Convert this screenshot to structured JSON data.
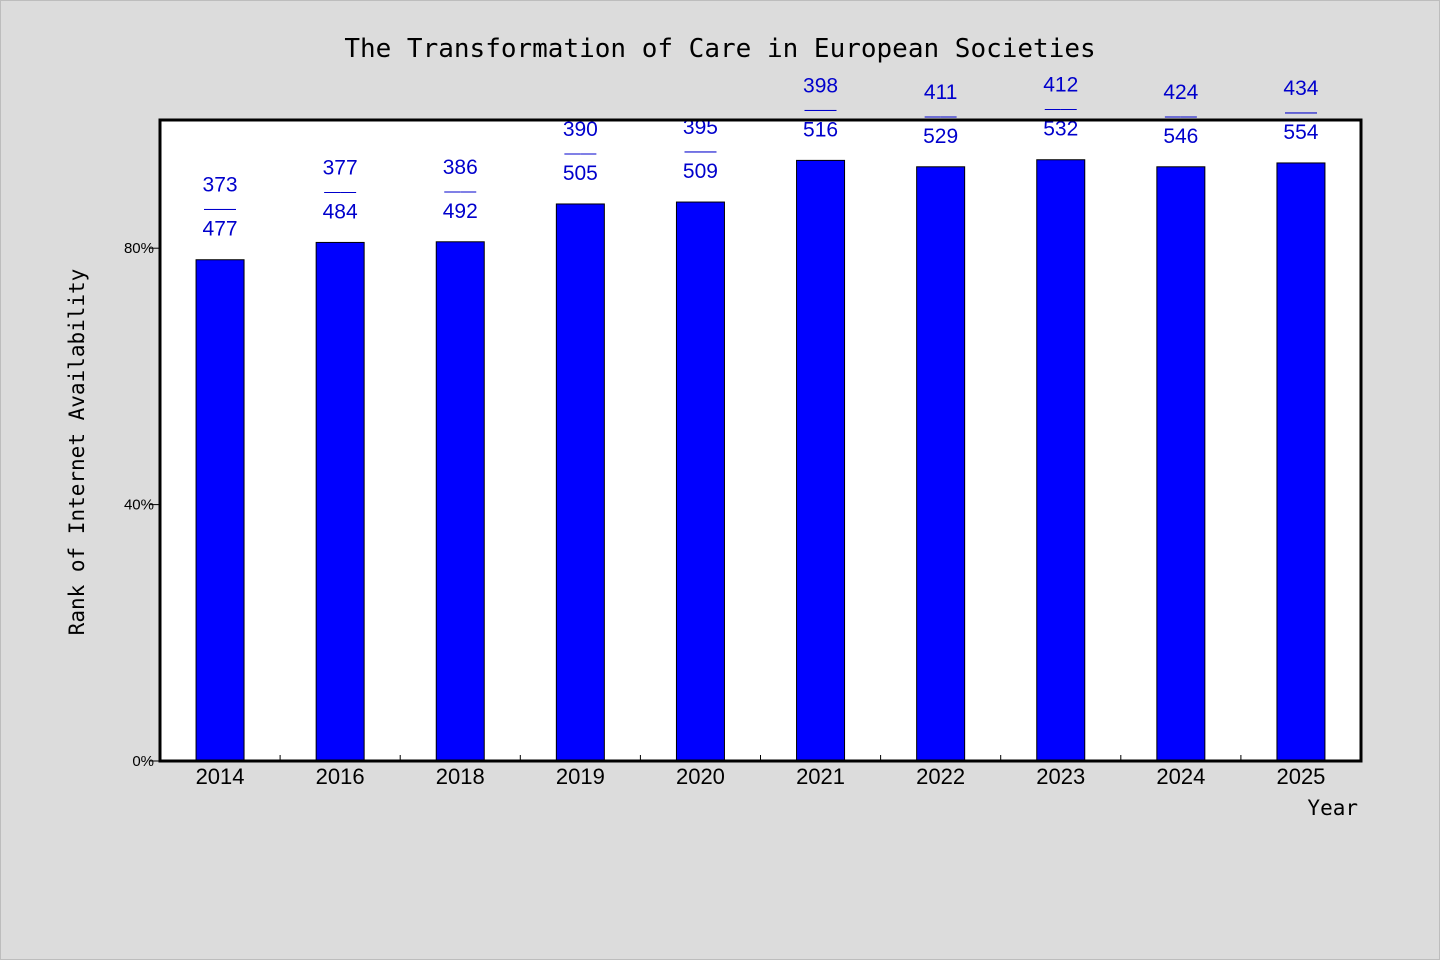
{
  "chart_data": {
    "type": "bar",
    "title": "The Transformation of Care in European Societies",
    "xlabel": "Year",
    "ylabel": "Rank of Internet Availability",
    "categories": [
      "2014",
      "2016",
      "2018",
      "2019",
      "2020",
      "2021",
      "2022",
      "2023",
      "2024",
      "2025"
    ],
    "values": [
      78.2,
      80.9,
      81.0,
      86.9,
      87.2,
      93.7,
      92.7,
      93.8,
      92.7,
      93.3
    ],
    "values_unit": "%",
    "bar_labels": [
      {
        "top": "373",
        "bottom": "477"
      },
      {
        "top": "377",
        "bottom": "484"
      },
      {
        "top": "386",
        "bottom": "492"
      },
      {
        "top": "390",
        "bottom": "505"
      },
      {
        "top": "395",
        "bottom": "509"
      },
      {
        "top": "398",
        "bottom": "516"
      },
      {
        "top": "411",
        "bottom": "529"
      },
      {
        "top": "412",
        "bottom": "532"
      },
      {
        "top": "424",
        "bottom": "546"
      },
      {
        "top": "434",
        "bottom": "554"
      }
    ],
    "label_separator": "——",
    "yticks": [
      {
        "value": 0,
        "label": "0%"
      },
      {
        "value": 40,
        "label": "40%"
      },
      {
        "value": 80,
        "label": "80%"
      }
    ],
    "ylim": [
      0,
      100
    ],
    "grid": false,
    "bar_color": "#0000ff",
    "label_color": "#0000cc",
    "background_color": "#dcdcdc",
    "plot_background": "#ffffff"
  }
}
